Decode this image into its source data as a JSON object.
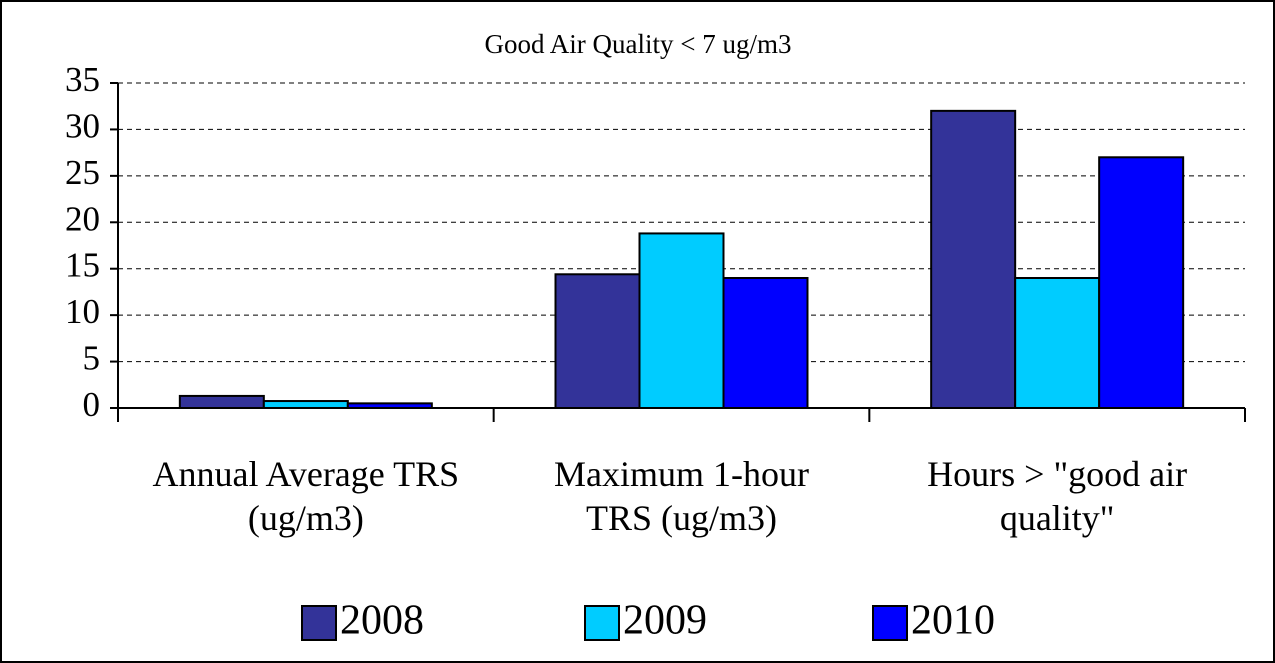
{
  "chart_data": {
    "type": "bar",
    "title": "Good Air Quality < 7 ug/m3",
    "categories": [
      "Annual Average TRS (ug/m3)",
      "Maximum 1-hour TRS (ug/m3)",
      "Hours > \"good air quality\""
    ],
    "series": [
      {
        "name": "2008",
        "color": "#333399",
        "values": [
          1.3,
          14.4,
          32
        ]
      },
      {
        "name": "2009",
        "color": "#00ccff",
        "values": [
          0.75,
          18.8,
          14
        ]
      },
      {
        "name": "2010",
        "color": "#0000ff",
        "values": [
          0.5,
          14,
          27
        ]
      }
    ],
    "ylim": [
      0,
      35
    ],
    "yticks": [
      0,
      5,
      10,
      15,
      20,
      25,
      30,
      35
    ],
    "grid": true,
    "legend": "bottom"
  }
}
